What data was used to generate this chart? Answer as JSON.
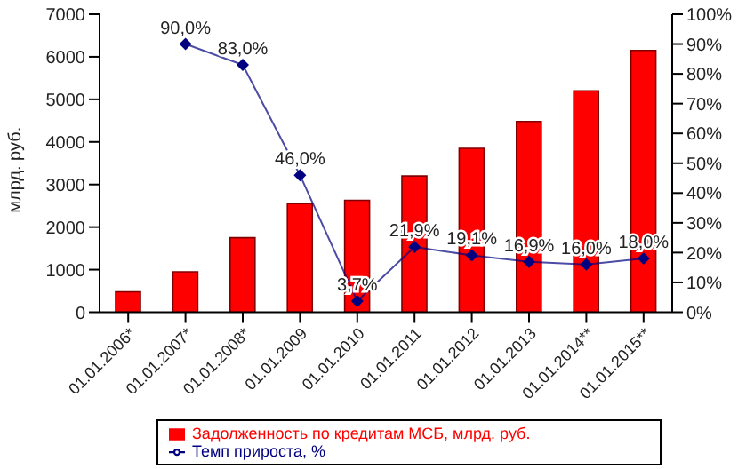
{
  "chart_data": {
    "type": "bar",
    "ylabel": "млрд. руб.",
    "categories": [
      "01.01.2006*",
      "01.01.2007*",
      "01.01.2008*",
      "01.01.2009",
      "01.01.2010",
      "01.01.2011",
      "01.01.2012",
      "01.01.2013",
      "01.01.2014**",
      "01.01.2015**"
    ],
    "series": [
      {
        "name": "Задолженность по кредитам МСБ,  млрд. руб.",
        "color": "#ff0000",
        "values": [
          480,
          950,
          1750,
          2550,
          2630,
          3200,
          3850,
          4480,
          5200,
          6150
        ]
      },
      {
        "name": "Темп прироста, %",
        "type": "line",
        "axis": "y2",
        "color": "#000080",
        "marker": "diamond",
        "values": [
          null,
          90.0,
          83.0,
          46.0,
          3.7,
          21.9,
          19.1,
          16.9,
          16.0,
          18.0
        ],
        "value_labels": [
          null,
          "90,0%",
          "83,0%",
          "46,0%",
          "3,7%",
          "21,9%",
          "19,1%",
          "16,9%",
          "16,0%",
          "18,0%"
        ]
      }
    ],
    "ylim": [
      0,
      7000
    ],
    "yticks": [
      0,
      1000,
      2000,
      3000,
      4000,
      5000,
      6000,
      7000
    ],
    "y2lim": [
      0,
      100
    ],
    "y2ticks": [
      {
        "value": 0,
        "label": "0%"
      },
      {
        "value": 10,
        "label": "10%"
      },
      {
        "value": 20,
        "label": "20%"
      },
      {
        "value": 30,
        "label": "30%"
      },
      {
        "value": 40,
        "label": "40%"
      },
      {
        "value": 50,
        "label": "50%"
      },
      {
        "value": 60,
        "label": "60%"
      },
      {
        "value": 70,
        "label": "70%"
      },
      {
        "value": 80,
        "label": "80%"
      },
      {
        "value": 90,
        "label": "90%"
      },
      {
        "value": 100,
        "label": "100%"
      }
    ],
    "grid": false,
    "legend": "bottom"
  }
}
